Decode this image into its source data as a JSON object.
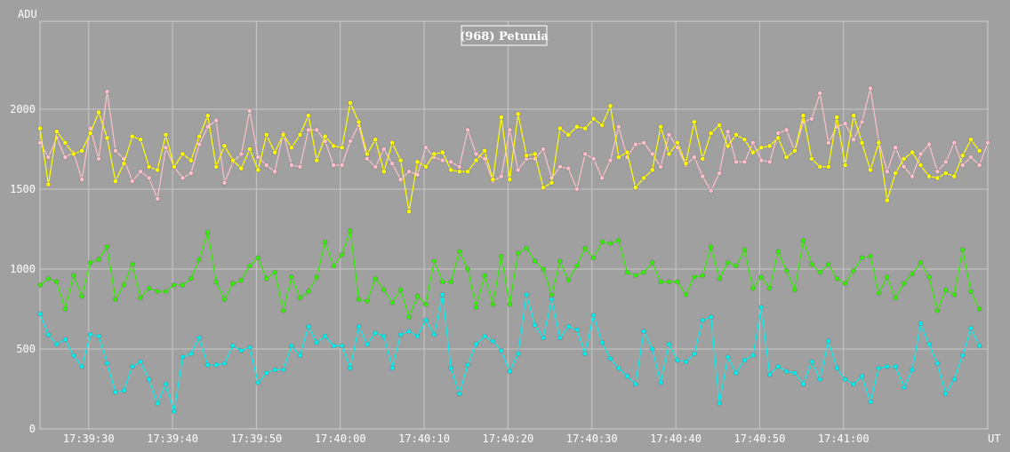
{
  "chart_data": {
    "type": "line",
    "title": "(968) Petunia",
    "ylabel": "ADU",
    "xlabel": "UT",
    "ylim": [
      0,
      2550
    ],
    "yticks": [
      0,
      500,
      1000,
      1500,
      2000
    ],
    "xticks": [
      "17:39:30",
      "17:39:40",
      "17:39:50",
      "17:40:00",
      "17:40:10",
      "17:40:20",
      "17:40:30",
      "17:40:40",
      "17:40:50",
      "17:41:00"
    ],
    "x_start": "17:39:24.2",
    "x_step_seconds": 1,
    "grid": true,
    "series": [
      {
        "color": "#ffc0cb",
        "values": [
          1790,
          1700,
          1820,
          1700,
          1730,
          1560,
          1880,
          1690,
          2110,
          1740,
          1690,
          1550,
          1610,
          1570,
          1440,
          1760,
          1640,
          1570,
          1600,
          1780,
          1890,
          1930,
          1540,
          1670,
          1720,
          1990,
          1700,
          1650,
          1610,
          1850,
          1650,
          1640,
          1870,
          1870,
          1800,
          1650,
          1650,
          1800,
          1900,
          1690,
          1640,
          1750,
          1660,
          1560,
          1610,
          1590,
          1760,
          1700,
          1680,
          1670,
          1640,
          1870,
          1720,
          1690,
          1550,
          1580,
          1870,
          1620,
          1690,
          1690,
          1750,
          1570,
          1640,
          1630,
          1500,
          1720,
          1690,
          1570,
          1680,
          1890,
          1700,
          1780,
          1790,
          1720,
          1640,
          1840,
          1760,
          1650,
          1700,
          1580,
          1490,
          1600,
          1860,
          1670,
          1670,
          1790,
          1680,
          1670,
          1850,
          1870,
          1740,
          1920,
          1940,
          2100,
          1790,
          1890,
          1910,
          1810,
          1920,
          2130,
          1800,
          1610,
          1760,
          1640,
          1580,
          1720,
          1780,
          1610,
          1670,
          1790,
          1650,
          1700,
          1650,
          1790
        ]
      },
      {
        "color": "#ffff00",
        "values": [
          1880,
          1530,
          1860,
          1790,
          1720,
          1740,
          1850,
          1980,
          1820,
          1550,
          1660,
          1830,
          1810,
          1640,
          1620,
          1840,
          1640,
          1720,
          1680,
          1830,
          1960,
          1640,
          1770,
          1680,
          1630,
          1750,
          1620,
          1840,
          1730,
          1840,
          1760,
          1840,
          1960,
          1680,
          1830,
          1770,
          1760,
          2040,
          1920,
          1720,
          1810,
          1610,
          1790,
          1680,
          1360,
          1670,
          1640,
          1720,
          1730,
          1620,
          1610,
          1610,
          1680,
          1740,
          1560,
          1950,
          1560,
          1970,
          1710,
          1720,
          1510,
          1540,
          1880,
          1840,
          1890,
          1880,
          1940,
          1900,
          2020,
          1700,
          1730,
          1510,
          1570,
          1620,
          1890,
          1720,
          1790,
          1660,
          1920,
          1690,
          1850,
          1900,
          1770,
          1840,
          1810,
          1730,
          1760,
          1770,
          1820,
          1700,
          1740,
          1960,
          1690,
          1640,
          1640,
          1950,
          1650,
          1960,
          1790,
          1620,
          1790,
          1430,
          1600,
          1690,
          1730,
          1650,
          1580,
          1570,
          1600,
          1580,
          1710,
          1810,
          1740
        ]
      },
      {
        "color": "#33ee00",
        "values": [
          900,
          940,
          920,
          750,
          960,
          830,
          1040,
          1060,
          1140,
          810,
          900,
          1030,
          820,
          880,
          860,
          860,
          900,
          900,
          940,
          1060,
          1230,
          920,
          810,
          910,
          930,
          1020,
          1070,
          940,
          980,
          740,
          950,
          820,
          860,
          950,
          1170,
          1020,
          1090,
          1240,
          810,
          800,
          940,
          870,
          790,
          870,
          700,
          830,
          780,
          1050,
          920,
          920,
          1110,
          1000,
          760,
          960,
          780,
          1080,
          780,
          1100,
          1130,
          1050,
          1000,
          840,
          1050,
          930,
          1020,
          1130,
          1070,
          1170,
          1160,
          1180,
          980,
          960,
          980,
          1040,
          920,
          920,
          920,
          840,
          950,
          960,
          1140,
          940,
          1040,
          1020,
          1120,
          880,
          950,
          880,
          1110,
          990,
          870,
          1180,
          1030,
          980,
          1030,
          940,
          910,
          990,
          1070,
          1080,
          850,
          950,
          820,
          910,
          970,
          1040,
          950,
          740,
          870,
          840,
          1120,
          860,
          750
        ]
      },
      {
        "color": "#00eeee",
        "values": [
          720,
          590,
          530,
          560,
          460,
          390,
          590,
          580,
          410,
          230,
          240,
          390,
          420,
          310,
          160,
          280,
          110,
          450,
          470,
          570,
          400,
          400,
          410,
          520,
          490,
          510,
          290,
          350,
          370,
          370,
          520,
          460,
          640,
          540,
          580,
          520,
          520,
          380,
          640,
          530,
          600,
          580,
          380,
          590,
          610,
          580,
          680,
          590,
          840,
          380,
          220,
          400,
          530,
          580,
          550,
          490,
          360,
          470,
          840,
          650,
          570,
          810,
          570,
          640,
          620,
          470,
          710,
          540,
          440,
          380,
          330,
          280,
          610,
          500,
          290,
          530,
          430,
          420,
          470,
          680,
          700,
          160,
          450,
          350,
          430,
          460,
          760,
          340,
          390,
          360,
          350,
          280,
          420,
          310,
          550,
          380,
          310,
          280,
          330,
          170,
          380,
          390,
          390,
          260,
          370,
          660,
          530,
          410,
          220,
          310,
          460,
          630,
          520
        ]
      }
    ]
  }
}
